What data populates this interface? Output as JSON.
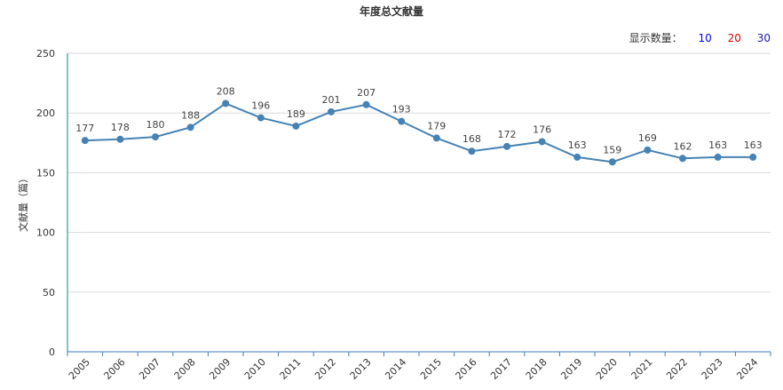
{
  "chart_data": {
    "type": "line",
    "title": "年度总文献量",
    "ylabel": "文献量（篇）",
    "xlabel": "",
    "categories": [
      "2005",
      "2006",
      "2007",
      "2008",
      "2009",
      "2010",
      "2011",
      "2012",
      "2013",
      "2014",
      "2015",
      "2016",
      "2017",
      "2018",
      "2019",
      "2020",
      "2021",
      "2022",
      "2023",
      "2024"
    ],
    "series": [
      {
        "values": [
          177,
          178,
          180,
          188,
          208,
          196,
          189,
          201,
          207,
          193,
          179,
          168,
          172,
          176,
          163,
          159,
          169,
          162,
          163,
          163
        ]
      }
    ],
    "ylim": [
      0,
      250
    ],
    "yticks": [
      0,
      50,
      100,
      150,
      200,
      250
    ],
    "grid": true,
    "line_color": "#4682b4",
    "axis_color": "#008b8b"
  },
  "display_count": {
    "label": "显示数量：",
    "options": [
      {
        "text": "10",
        "color": "#0000ff"
      },
      {
        "text": "20",
        "color": "#e60000"
      },
      {
        "text": "30",
        "color": "#1a1aa6"
      }
    ]
  }
}
